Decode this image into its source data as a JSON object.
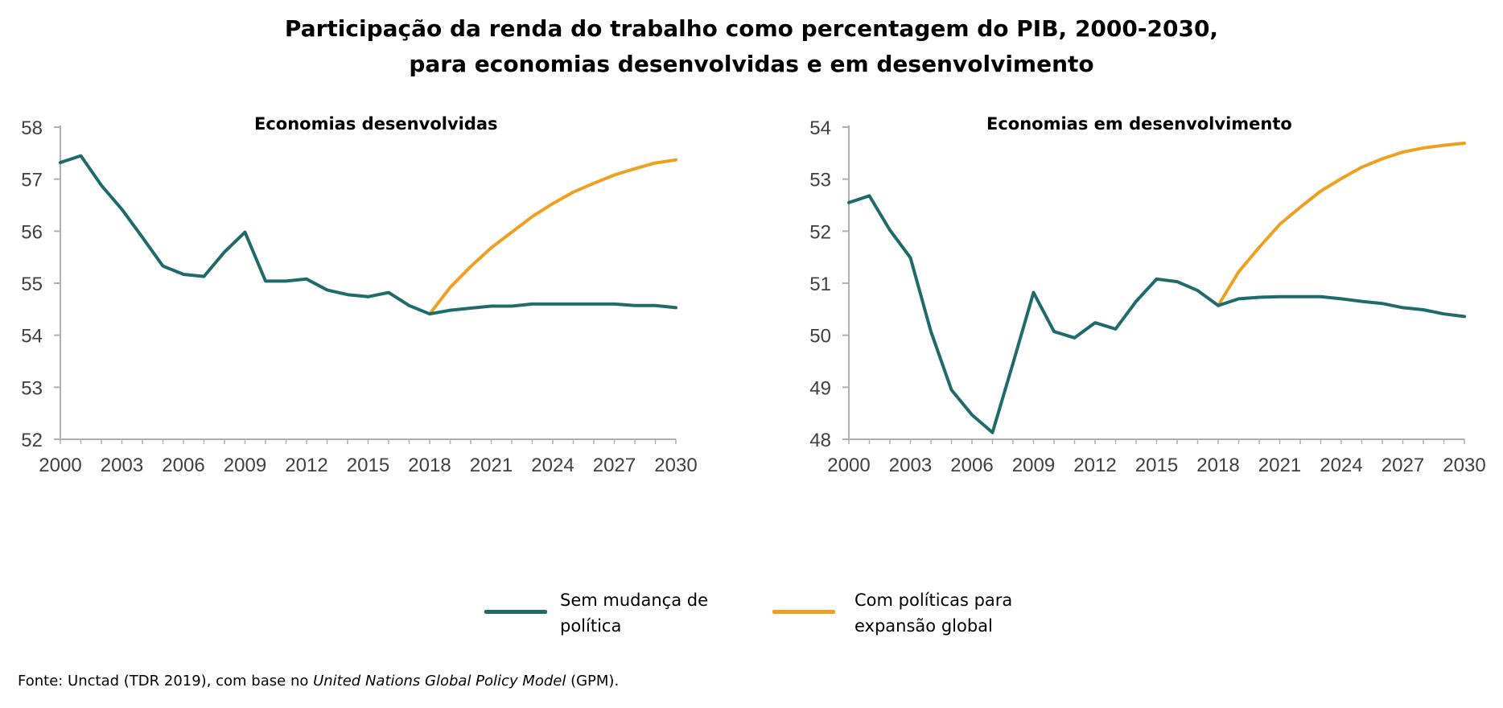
{
  "title": {
    "line1": "Participação da renda do trabalho como percentagem do PIB, 2000-2030,",
    "line2": "para economias desenvolvidas e em desenvolvimento"
  },
  "legend": {
    "series1": {
      "label_line1": "Sem mudança de",
      "label_line2": "política",
      "color": "#1f6b6b"
    },
    "series2": {
      "label_line1": "Com políticas para",
      "label_line2": "expansão global",
      "color": "#f0a020"
    }
  },
  "source": {
    "prefix": "Fonte: Unctad (TDR 2019), com base no ",
    "italic": "United Nations Global Policy Model",
    "suffix": " (GPM)."
  },
  "chart_data": [
    {
      "type": "line",
      "title": "Economias desenvolvidas",
      "x": [
        2000,
        2001,
        2002,
        2003,
        2004,
        2005,
        2006,
        2007,
        2008,
        2009,
        2010,
        2011,
        2012,
        2013,
        2014,
        2015,
        2016,
        2017,
        2018,
        2019,
        2020,
        2021,
        2022,
        2023,
        2024,
        2025,
        2026,
        2027,
        2028,
        2029,
        2030
      ],
      "xticks": [
        2000,
        2003,
        2006,
        2009,
        2012,
        2015,
        2018,
        2021,
        2024,
        2027,
        2030
      ],
      "yticks": [
        52,
        53,
        54,
        55,
        56,
        57,
        58
      ],
      "ylim": [
        52,
        58
      ],
      "xlim": [
        2000,
        2030
      ],
      "series": [
        {
          "name": "Sem mudança de política",
          "color": "#1f6b6b",
          "x": [
            2000,
            2001,
            2002,
            2003,
            2004,
            2005,
            2006,
            2007,
            2008,
            2009,
            2010,
            2011,
            2012,
            2013,
            2014,
            2015,
            2016,
            2017,
            2018,
            2019,
            2020,
            2021,
            2022,
            2023,
            2024,
            2025,
            2026,
            2027,
            2028,
            2029,
            2030
          ],
          "values": [
            57.32,
            57.45,
            56.88,
            56.42,
            55.88,
            55.33,
            55.17,
            55.13,
            55.6,
            55.98,
            55.04,
            55.04,
            55.08,
            54.87,
            54.78,
            54.74,
            54.82,
            54.57,
            54.41,
            54.48,
            54.52,
            54.56,
            54.56,
            54.6,
            54.6,
            54.6,
            54.6,
            54.6,
            54.57,
            54.57,
            54.53
          ]
        },
        {
          "name": "Com políticas para expansão global",
          "color": "#f0a020",
          "x": [
            2018,
            2019,
            2020,
            2021,
            2022,
            2023,
            2024,
            2025,
            2026,
            2027,
            2028,
            2029,
            2030
          ],
          "values": [
            54.41,
            54.92,
            55.32,
            55.68,
            55.98,
            56.28,
            56.53,
            56.75,
            56.92,
            57.08,
            57.2,
            57.31,
            57.37
          ]
        }
      ]
    },
    {
      "type": "line",
      "title": "Economias em desenvolvimento",
      "x": [
        2000,
        2001,
        2002,
        2003,
        2004,
        2005,
        2006,
        2007,
        2008,
        2009,
        2010,
        2011,
        2012,
        2013,
        2014,
        2015,
        2016,
        2017,
        2018,
        2019,
        2020,
        2021,
        2022,
        2023,
        2024,
        2025,
        2026,
        2027,
        2028,
        2029,
        2030
      ],
      "xticks": [
        2000,
        2003,
        2006,
        2009,
        2012,
        2015,
        2018,
        2021,
        2024,
        2027,
        2030
      ],
      "yticks": [
        48,
        49,
        50,
        51,
        52,
        53,
        54
      ],
      "ylim": [
        48,
        54
      ],
      "xlim": [
        2000,
        2030
      ],
      "series": [
        {
          "name": "Sem mudança de política",
          "color": "#1f6b6b",
          "x": [
            2000,
            2001,
            2002,
            2003,
            2004,
            2005,
            2006,
            2007,
            2008,
            2009,
            2010,
            2011,
            2012,
            2013,
            2014,
            2015,
            2016,
            2017,
            2018,
            2019,
            2020,
            2021,
            2022,
            2023,
            2024,
            2025,
            2026,
            2027,
            2028,
            2029,
            2030
          ],
          "values": [
            52.55,
            52.68,
            52.02,
            51.49,
            50.07,
            48.95,
            48.47,
            48.13,
            49.46,
            50.82,
            50.07,
            49.95,
            50.24,
            50.12,
            50.65,
            51.08,
            51.03,
            50.86,
            50.57,
            50.7,
            50.73,
            50.74,
            50.74,
            50.74,
            50.7,
            50.65,
            50.61,
            50.53,
            50.49,
            50.41,
            50.36
          ]
        },
        {
          "name": "Com políticas para expansão global",
          "color": "#f0a020",
          "x": [
            2018,
            2019,
            2020,
            2021,
            2022,
            2023,
            2024,
            2025,
            2026,
            2027,
            2028,
            2029,
            2030
          ],
          "values": [
            50.57,
            51.22,
            51.69,
            52.13,
            52.46,
            52.77,
            53.01,
            53.23,
            53.39,
            53.52,
            53.6,
            53.65,
            53.69
          ]
        }
      ]
    }
  ]
}
